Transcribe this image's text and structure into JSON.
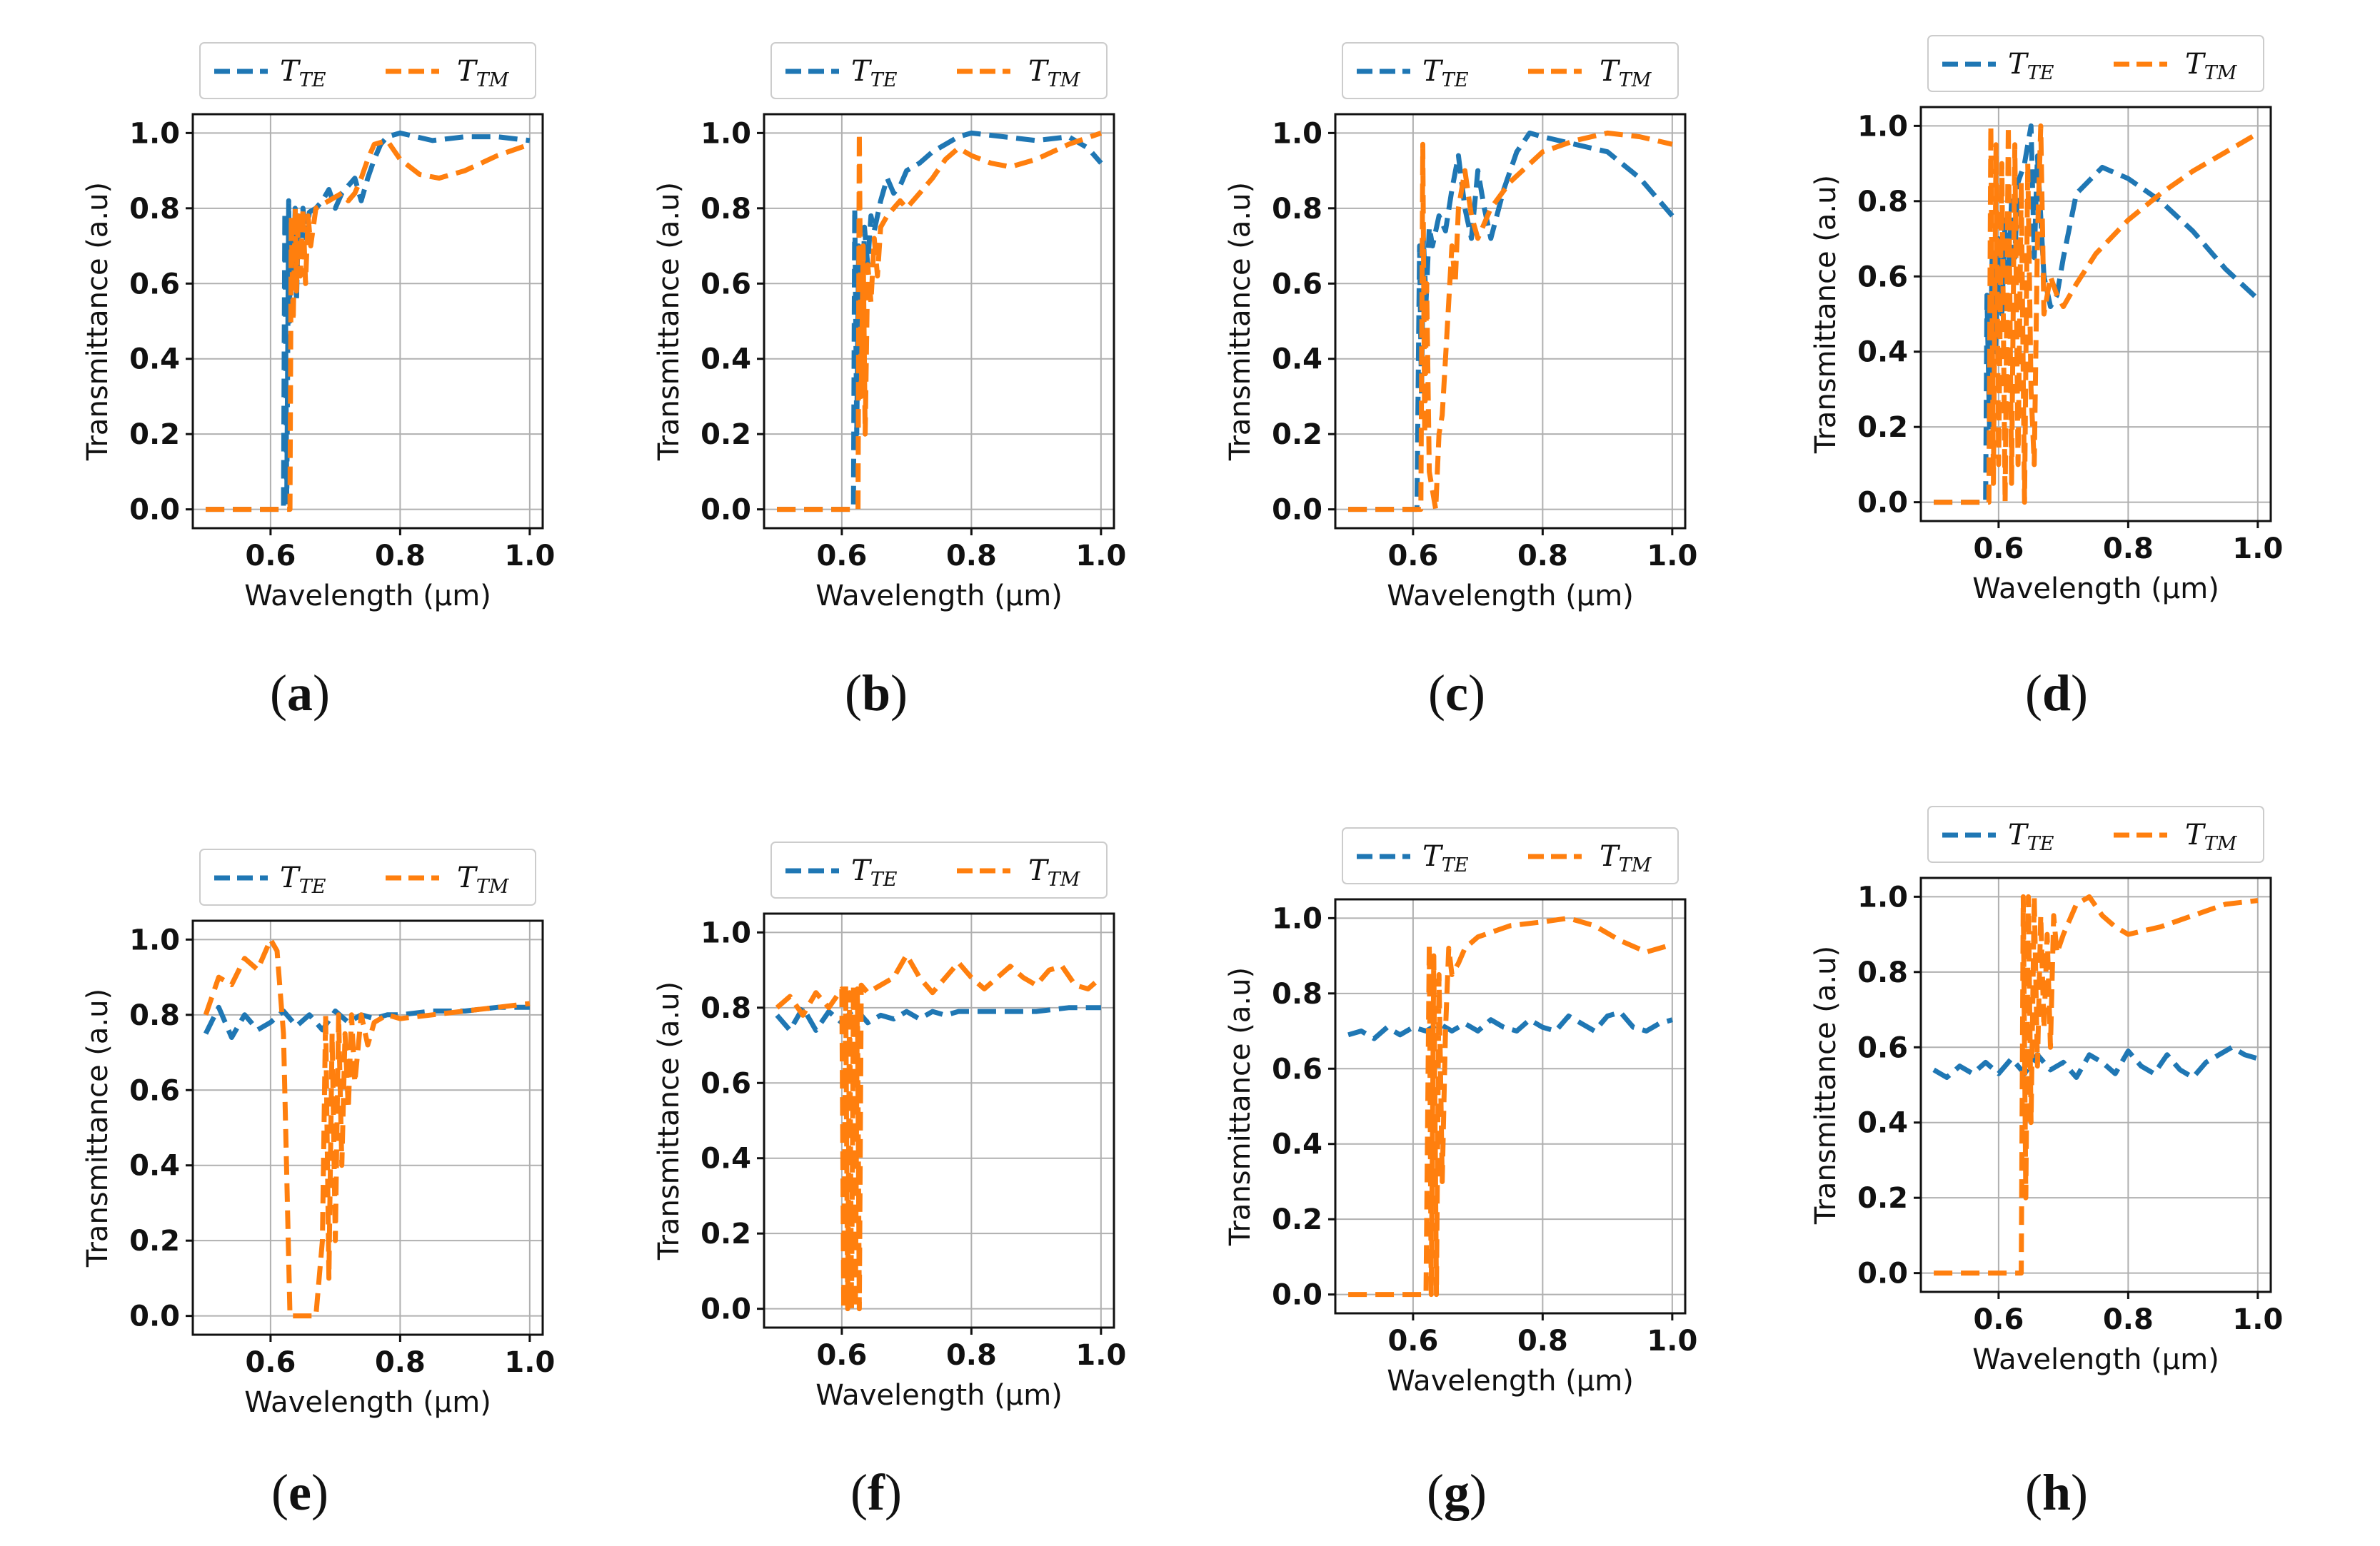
{
  "common": {
    "xlabel": "Wavelength (μm)",
    "ylabel": "Transmittance (a.u)",
    "legend_te": "T",
    "legend_te_sub": "TE",
    "legend_tm": "T",
    "legend_tm_sub": "TM",
    "color_te": "#1f77b4",
    "color_tm": "#ff7f0e",
    "xticks": [
      "0.6",
      "0.8",
      "1.0"
    ],
    "yticks": [
      "0.0",
      "0.2",
      "0.4",
      "0.6",
      "0.8",
      "1.0"
    ]
  },
  "captions": [
    "a",
    "b",
    "c",
    "d",
    "e",
    "f",
    "g",
    "h"
  ],
  "chart_data": [
    {
      "panel": "a",
      "type": "line",
      "xlim": [
        0.48,
        1.02
      ],
      "ylim": [
        -0.05,
        1.05
      ],
      "xlabel": "Wavelength (μm)",
      "ylabel": "Transmittance (a.u)",
      "series": [
        {
          "name": "T_TE",
          "x": [
            0.5,
            0.55,
            0.6,
            0.62,
            0.622,
            0.625,
            0.628,
            0.63,
            0.632,
            0.635,
            0.638,
            0.64,
            0.643,
            0.646,
            0.65,
            0.655,
            0.66,
            0.67,
            0.68,
            0.69,
            0.7,
            0.71,
            0.72,
            0.73,
            0.74,
            0.75,
            0.76,
            0.77,
            0.78,
            0.8,
            0.85,
            0.9,
            0.95,
            1.0
          ],
          "y": [
            0,
            0,
            0,
            0,
            0.79,
            0.02,
            0.82,
            0.5,
            0.75,
            0.6,
            0.8,
            0.55,
            0.78,
            0.68,
            0.8,
            0.72,
            0.79,
            0.8,
            0.82,
            0.85,
            0.8,
            0.84,
            0.86,
            0.88,
            0.82,
            0.88,
            0.93,
            0.97,
            0.99,
            1.0,
            0.98,
            0.99,
            0.99,
            0.98
          ]
        },
        {
          "name": "T_TM",
          "x": [
            0.5,
            0.55,
            0.6,
            0.63,
            0.632,
            0.635,
            0.638,
            0.64,
            0.643,
            0.646,
            0.65,
            0.654,
            0.658,
            0.662,
            0.67,
            0.68,
            0.69,
            0.7,
            0.71,
            0.72,
            0.73,
            0.74,
            0.75,
            0.76,
            0.78,
            0.8,
            0.83,
            0.86,
            0.9,
            0.95,
            1.0
          ],
          "y": [
            0,
            0,
            0,
            0,
            0.78,
            0.5,
            0.8,
            0.58,
            0.79,
            0.62,
            0.8,
            0.6,
            0.78,
            0.7,
            0.8,
            0.81,
            0.82,
            0.83,
            0.84,
            0.82,
            0.84,
            0.88,
            0.93,
            0.97,
            0.98,
            0.93,
            0.89,
            0.88,
            0.9,
            0.94,
            0.97
          ]
        }
      ]
    },
    {
      "panel": "b",
      "type": "line",
      "xlim": [
        0.48,
        1.02
      ],
      "ylim": [
        -0.05,
        1.05
      ],
      "xlabel": "Wavelength (μm)",
      "ylabel": "Transmittance (a.u)",
      "series": [
        {
          "name": "T_TE",
          "x": [
            0.5,
            0.55,
            0.6,
            0.618,
            0.62,
            0.623,
            0.626,
            0.63,
            0.635,
            0.64,
            0.645,
            0.65,
            0.66,
            0.67,
            0.68,
            0.69,
            0.7,
            0.72,
            0.74,
            0.76,
            0.78,
            0.8,
            0.85,
            0.9,
            0.95,
            0.98,
            1.0
          ],
          "y": [
            0,
            0,
            0,
            0,
            0.8,
            0.2,
            0.7,
            0.4,
            0.75,
            0.65,
            0.78,
            0.74,
            0.82,
            0.88,
            0.84,
            0.86,
            0.9,
            0.92,
            0.95,
            0.97,
            0.99,
            1.0,
            0.99,
            0.98,
            0.99,
            0.96,
            0.92
          ]
        },
        {
          "name": "T_TM",
          "x": [
            0.5,
            0.55,
            0.6,
            0.625,
            0.627,
            0.63,
            0.633,
            0.636,
            0.64,
            0.645,
            0.65,
            0.655,
            0.66,
            0.67,
            0.68,
            0.69,
            0.7,
            0.72,
            0.74,
            0.76,
            0.78,
            0.8,
            0.83,
            0.86,
            0.9,
            0.95,
            1.0
          ],
          "y": [
            0,
            0,
            0,
            0,
            1.0,
            0.3,
            0.7,
            0.2,
            0.65,
            0.55,
            0.72,
            0.62,
            0.75,
            0.78,
            0.8,
            0.82,
            0.8,
            0.84,
            0.88,
            0.93,
            0.96,
            0.94,
            0.92,
            0.91,
            0.93,
            0.97,
            1.0
          ]
        }
      ]
    },
    {
      "panel": "c",
      "type": "line",
      "xlim": [
        0.48,
        1.02
      ],
      "ylim": [
        -0.05,
        1.05
      ],
      "xlabel": "Wavelength (μm)",
      "ylabel": "Transmittance (a.u)",
      "series": [
        {
          "name": "T_TE",
          "x": [
            0.5,
            0.55,
            0.6,
            0.606,
            0.61,
            0.613,
            0.616,
            0.62,
            0.625,
            0.63,
            0.64,
            0.65,
            0.66,
            0.67,
            0.68,
            0.69,
            0.7,
            0.71,
            0.72,
            0.74,
            0.76,
            0.78,
            0.8,
            0.85,
            0.9,
            0.95,
            1.0
          ],
          "y": [
            0,
            0,
            0,
            0,
            0.7,
            0.3,
            0.72,
            0.55,
            0.75,
            0.7,
            0.78,
            0.74,
            0.85,
            0.94,
            0.8,
            0.72,
            0.9,
            0.8,
            0.72,
            0.85,
            0.95,
            1.0,
            0.99,
            0.97,
            0.95,
            0.88,
            0.78
          ]
        },
        {
          "name": "T_TM",
          "x": [
            0.5,
            0.55,
            0.6,
            0.612,
            0.615,
            0.618,
            0.621,
            0.625,
            0.63,
            0.635,
            0.64,
            0.645,
            0.65,
            0.655,
            0.66,
            0.665,
            0.67,
            0.68,
            0.69,
            0.7,
            0.72,
            0.75,
            0.8,
            0.85,
            0.9,
            0.95,
            1.0
          ],
          "y": [
            0,
            0,
            0,
            0,
            0.97,
            0.2,
            0.6,
            0.1,
            0.05,
            0.0,
            0.2,
            0.25,
            0.4,
            0.55,
            0.7,
            0.6,
            0.8,
            0.9,
            0.78,
            0.72,
            0.8,
            0.87,
            0.95,
            0.98,
            1.0,
            0.99,
            0.97
          ]
        }
      ]
    },
    {
      "panel": "d",
      "type": "line",
      "xlim": [
        0.48,
        1.02
      ],
      "ylim": [
        -0.05,
        1.05
      ],
      "xlabel": "Wavelength (μm)",
      "ylabel": "Transmittance (a.u)",
      "series": [
        {
          "name": "T_TE",
          "x": [
            0.5,
            0.55,
            0.58,
            0.582,
            0.586,
            0.59,
            0.595,
            0.6,
            0.605,
            0.61,
            0.615,
            0.62,
            0.625,
            0.63,
            0.64,
            0.65,
            0.655,
            0.66,
            0.67,
            0.68,
            0.69,
            0.7,
            0.72,
            0.76,
            0.8,
            0.85,
            0.9,
            0.95,
            1.0
          ],
          "y": [
            0,
            0,
            0,
            0.55,
            0.2,
            0.65,
            0.4,
            0.7,
            0.5,
            0.75,
            0.6,
            0.8,
            0.65,
            0.85,
            0.9,
            1.0,
            0.65,
            0.92,
            0.6,
            0.52,
            0.55,
            0.65,
            0.82,
            0.89,
            0.86,
            0.8,
            0.72,
            0.62,
            0.54
          ]
        },
        {
          "name": "T_TM",
          "x": [
            0.5,
            0.55,
            0.585,
            0.588,
            0.592,
            0.596,
            0.6,
            0.605,
            0.61,
            0.615,
            0.62,
            0.625,
            0.63,
            0.635,
            0.64,
            0.645,
            0.65,
            0.655,
            0.66,
            0.665,
            0.67,
            0.68,
            0.69,
            0.7,
            0.72,
            0.75,
            0.8,
            0.85,
            0.9,
            0.95,
            1.0
          ],
          "y": [
            0,
            0,
            0,
            1.0,
            0.05,
            0.95,
            0.1,
            0.9,
            0.0,
            1.0,
            0.05,
            0.95,
            0.1,
            0.85,
            0.0,
            0.9,
            0.3,
            0.1,
            0.7,
            1.0,
            0.5,
            0.6,
            0.55,
            0.52,
            0.58,
            0.66,
            0.75,
            0.82,
            0.88,
            0.93,
            0.98
          ]
        }
      ]
    },
    {
      "panel": "e",
      "type": "line",
      "xlim": [
        0.48,
        1.02
      ],
      "ylim": [
        -0.05,
        1.05
      ],
      "xlabel": "Wavelength (μm)",
      "ylabel": "Transmittance (a.u)",
      "series": [
        {
          "name": "T_TE",
          "x": [
            0.5,
            0.52,
            0.54,
            0.56,
            0.58,
            0.6,
            0.62,
            0.64,
            0.66,
            0.68,
            0.7,
            0.72,
            0.74,
            0.76,
            0.78,
            0.8,
            0.85,
            0.9,
            0.95,
            1.0
          ],
          "y": [
            0.75,
            0.82,
            0.74,
            0.8,
            0.76,
            0.78,
            0.81,
            0.77,
            0.8,
            0.76,
            0.81,
            0.78,
            0.8,
            0.79,
            0.8,
            0.8,
            0.81,
            0.81,
            0.82,
            0.82
          ]
        },
        {
          "name": "T_TM",
          "x": [
            0.5,
            0.52,
            0.54,
            0.56,
            0.58,
            0.6,
            0.61,
            0.62,
            0.63,
            0.64,
            0.65,
            0.67,
            0.68,
            0.685,
            0.69,
            0.695,
            0.7,
            0.705,
            0.71,
            0.715,
            0.72,
            0.725,
            0.73,
            0.74,
            0.75,
            0.76,
            0.78,
            0.8,
            0.85,
            0.9,
            0.95,
            1.0
          ],
          "y": [
            0.8,
            0.9,
            0.88,
            0.95,
            0.92,
            1.0,
            0.97,
            0.75,
            0.0,
            0.0,
            0.0,
            0.0,
            0.2,
            0.8,
            0.1,
            0.75,
            0.2,
            0.8,
            0.4,
            0.75,
            0.55,
            0.8,
            0.62,
            0.8,
            0.72,
            0.78,
            0.8,
            0.79,
            0.8,
            0.81,
            0.82,
            0.83
          ]
        }
      ]
    },
    {
      "panel": "f",
      "type": "line",
      "xlim": [
        0.48,
        1.02
      ],
      "ylim": [
        -0.05,
        1.05
      ],
      "xlabel": "Wavelength (μm)",
      "ylabel": "Transmittance (a.u)",
      "series": [
        {
          "name": "T_TE",
          "x": [
            0.5,
            0.52,
            0.54,
            0.56,
            0.58,
            0.6,
            0.62,
            0.64,
            0.66,
            0.68,
            0.7,
            0.72,
            0.74,
            0.76,
            0.78,
            0.8,
            0.85,
            0.9,
            0.95,
            1.0
          ],
          "y": [
            0.78,
            0.74,
            0.8,
            0.74,
            0.79,
            0.76,
            0.8,
            0.76,
            0.78,
            0.77,
            0.79,
            0.77,
            0.79,
            0.78,
            0.79,
            0.79,
            0.79,
            0.79,
            0.8,
            0.8
          ]
        },
        {
          "name": "T_TM",
          "x": [
            0.5,
            0.52,
            0.54,
            0.56,
            0.58,
            0.6,
            0.603,
            0.606,
            0.609,
            0.612,
            0.615,
            0.618,
            0.621,
            0.624,
            0.627,
            0.63,
            0.64,
            0.66,
            0.68,
            0.7,
            0.72,
            0.74,
            0.76,
            0.78,
            0.8,
            0.82,
            0.84,
            0.86,
            0.88,
            0.9,
            0.92,
            0.94,
            0.96,
            0.98,
            1.0
          ],
          "y": [
            0.8,
            0.83,
            0.78,
            0.84,
            0.8,
            0.85,
            0.0,
            0.86,
            0.0,
            0.84,
            0.0,
            0.86,
            0.0,
            0.85,
            0.0,
            0.86,
            0.84,
            0.86,
            0.88,
            0.94,
            0.88,
            0.84,
            0.88,
            0.92,
            0.88,
            0.85,
            0.88,
            0.91,
            0.88,
            0.86,
            0.9,
            0.91,
            0.86,
            0.85,
            0.88
          ]
        }
      ]
    },
    {
      "panel": "g",
      "type": "line",
      "xlim": [
        0.48,
        1.02
      ],
      "ylim": [
        -0.05,
        1.05
      ],
      "xlabel": "Wavelength (μm)",
      "ylabel": "Transmittance (a.u)",
      "series": [
        {
          "name": "T_TE",
          "x": [
            0.5,
            0.52,
            0.54,
            0.56,
            0.58,
            0.6,
            0.62,
            0.64,
            0.66,
            0.68,
            0.7,
            0.72,
            0.74,
            0.76,
            0.78,
            0.8,
            0.82,
            0.84,
            0.86,
            0.88,
            0.9,
            0.92,
            0.94,
            0.96,
            0.98,
            1.0
          ],
          "y": [
            0.69,
            0.7,
            0.68,
            0.71,
            0.69,
            0.71,
            0.7,
            0.72,
            0.7,
            0.72,
            0.7,
            0.73,
            0.71,
            0.7,
            0.73,
            0.71,
            0.7,
            0.74,
            0.72,
            0.7,
            0.74,
            0.75,
            0.71,
            0.7,
            0.72,
            0.73
          ]
        },
        {
          "name": "T_TM",
          "x": [
            0.5,
            0.55,
            0.6,
            0.62,
            0.625,
            0.628,
            0.632,
            0.636,
            0.64,
            0.645,
            0.65,
            0.655,
            0.66,
            0.67,
            0.68,
            0.7,
            0.75,
            0.8,
            0.84,
            0.88,
            0.92,
            0.96,
            1.0
          ],
          "y": [
            0,
            0,
            0,
            0,
            0.93,
            0.0,
            0.9,
            0.0,
            0.85,
            0.3,
            0.7,
            0.92,
            0.85,
            0.88,
            0.92,
            0.95,
            0.98,
            0.99,
            1.0,
            0.98,
            0.94,
            0.91,
            0.93
          ]
        }
      ]
    },
    {
      "panel": "h",
      "type": "line",
      "xlim": [
        0.48,
        1.02
      ],
      "ylim": [
        -0.05,
        1.05
      ],
      "xlabel": "Wavelength (μm)",
      "ylabel": "Transmittance (a.u)",
      "series": [
        {
          "name": "T_TE",
          "x": [
            0.5,
            0.52,
            0.54,
            0.56,
            0.58,
            0.6,
            0.62,
            0.64,
            0.66,
            0.68,
            0.7,
            0.72,
            0.74,
            0.76,
            0.78,
            0.8,
            0.82,
            0.84,
            0.86,
            0.88,
            0.9,
            0.92,
            0.94,
            0.96,
            0.98,
            1.0
          ],
          "y": [
            0.54,
            0.52,
            0.55,
            0.53,
            0.56,
            0.53,
            0.57,
            0.53,
            0.58,
            0.54,
            0.56,
            0.52,
            0.58,
            0.56,
            0.53,
            0.59,
            0.55,
            0.53,
            0.58,
            0.54,
            0.52,
            0.56,
            0.58,
            0.6,
            0.58,
            0.57
          ]
        },
        {
          "name": "T_TM",
          "x": [
            0.5,
            0.55,
            0.6,
            0.635,
            0.638,
            0.642,
            0.646,
            0.65,
            0.655,
            0.66,
            0.665,
            0.67,
            0.675,
            0.68,
            0.685,
            0.69,
            0.7,
            0.72,
            0.74,
            0.76,
            0.78,
            0.8,
            0.85,
            0.9,
            0.95,
            1.0
          ],
          "y": [
            0,
            0,
            0,
            0,
            1.0,
            0.2,
            1.0,
            0.4,
            1.0,
            0.55,
            0.95,
            0.65,
            0.9,
            0.6,
            0.95,
            0.85,
            0.9,
            0.98,
            1.0,
            0.95,
            0.92,
            0.9,
            0.92,
            0.95,
            0.98,
            0.99
          ]
        }
      ]
    }
  ]
}
